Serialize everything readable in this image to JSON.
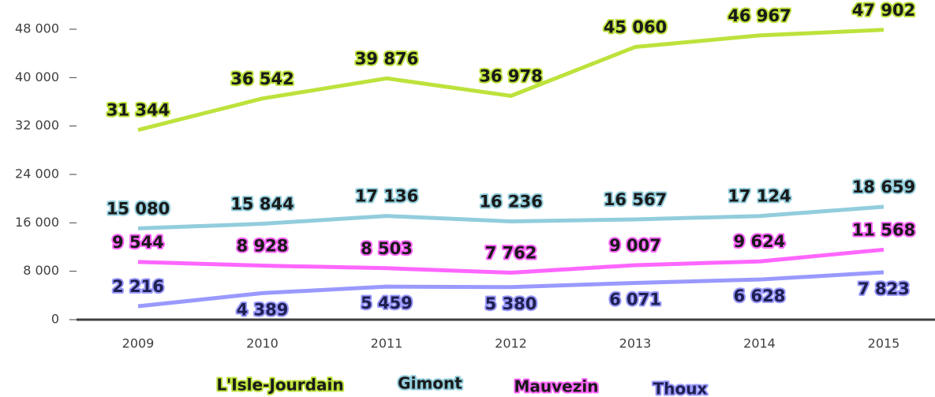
{
  "chart_data": {
    "type": "line",
    "categories": [
      "2009",
      "2010",
      "2011",
      "2012",
      "2013",
      "2014",
      "2015"
    ],
    "ylim": [
      0,
      48000
    ],
    "yticks": [
      0,
      {
        "value": 8000,
        "label": "8 000"
      },
      {
        "value": 16000,
        "label": "16 000"
      },
      {
        "value": 24000,
        "label": "24 000"
      },
      {
        "value": 32000,
        "label": "32 000"
      },
      {
        "value": 40000,
        "label": "40 000"
      },
      {
        "value": 48000,
        "label": "48 000"
      }
    ],
    "legend": "bottom",
    "series": [
      {
        "name": "L'Isle-Jourdain",
        "color": "#bde23c",
        "values": [
          31344,
          36542,
          39876,
          36978,
          45060,
          46967,
          47902
        ],
        "value_labels": [
          "31 344",
          "36 542",
          "39 876",
          "36 978",
          "45 060",
          "46 967",
          "47 902"
        ]
      },
      {
        "name": "Gimont",
        "color": "#92cddc",
        "values": [
          15080,
          15844,
          17136,
          16236,
          16567,
          17124,
          18659
        ],
        "value_labels": [
          "15 080",
          "15 844",
          "17 136",
          "16 236",
          "16 567",
          "17 124",
          "18 659"
        ]
      },
      {
        "name": "Mauvezin",
        "color": "#ff66ff",
        "values": [
          9544,
          8928,
          8503,
          7762,
          9007,
          9624,
          11568
        ],
        "value_labels": [
          "9 544",
          "8 928",
          "8 503",
          "7 762",
          "9 007",
          "9 624",
          "11 568"
        ]
      },
      {
        "name": "Thoux",
        "color": "#9999ff",
        "values": [
          2216,
          4389,
          5459,
          5380,
          6071,
          6628,
          7823
        ],
        "value_labels": [
          "2 216",
          "4 389",
          "5 459",
          "5 380",
          "6 071",
          "6 628",
          "7 823"
        ]
      }
    ]
  }
}
